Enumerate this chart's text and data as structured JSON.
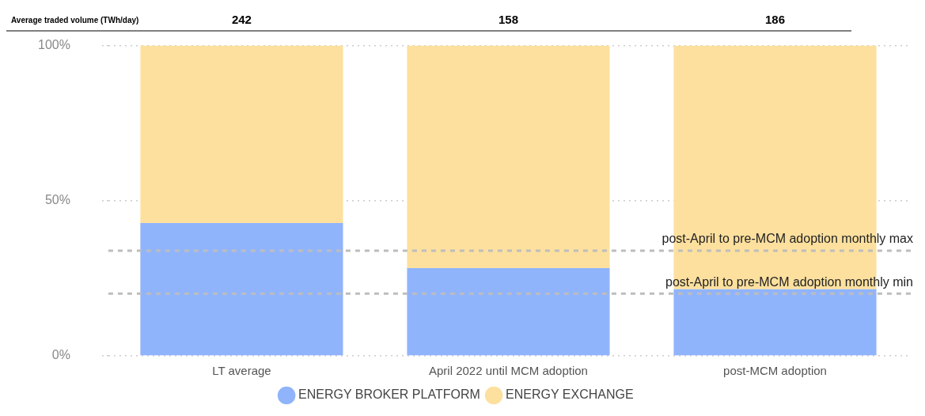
{
  "chart_data": {
    "type": "bar",
    "stacked": true,
    "categories": [
      "LT average",
      "April 2022 until MCM adoption",
      "post-MCM adoption"
    ],
    "series": [
      {
        "name": "ENERGY BROKER PLATFORM",
        "color": "#90b4fc",
        "values": [
          42.8,
          28.3,
          21.5
        ]
      },
      {
        "name": "ENERGY EXCHANGE",
        "color": "#fde09e",
        "values": [
          57.2,
          71.7,
          78.5
        ]
      }
    ],
    "ylim": [
      0,
      100
    ],
    "yticks": [
      {
        "value": 0,
        "label": "0%"
      },
      {
        "value": 50,
        "label": "50%"
      },
      {
        "value": 100,
        "label": "100%"
      }
    ],
    "grid": "y",
    "legend": "bottom",
    "annotations": [
      "Average traded volume (TWh/day)",
      "242",
      "158",
      "186"
    ],
    "ref_lines": [
      {
        "axis": "y",
        "value": 33.9,
        "label": "post-April to pre-MCM adoption monthly max",
        "color": "#bdbdbd",
        "line_style": "dashed"
      },
      {
        "axis": "y",
        "value": 20.1,
        "label": "post-April to pre-MCM adoption monthly min",
        "color": "#bdbdbd",
        "line_style": "dashed"
      }
    ]
  }
}
